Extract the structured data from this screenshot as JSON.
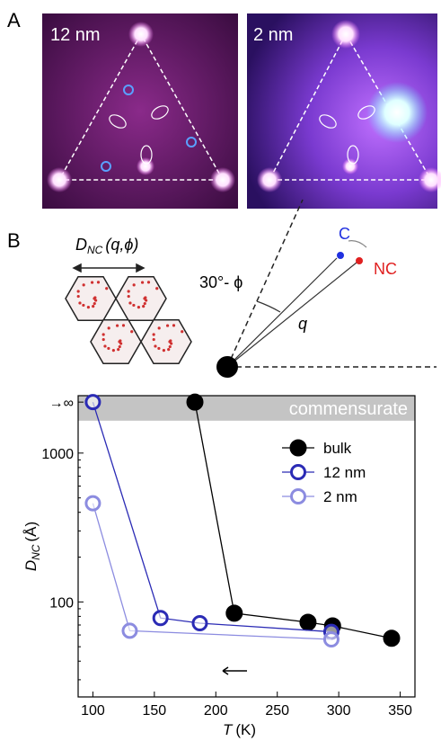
{
  "panels": {
    "a": {
      "label": "A",
      "images": [
        {
          "label": "12 nm"
        },
        {
          "label": "2 nm"
        }
      ]
    },
    "b": {
      "label": "B",
      "lattice_label": {
        "symbol": "D",
        "subscript": "NC",
        "args": "(q,ϕ)"
      },
      "angle_label": "30°- ϕ",
      "vector_label": "q",
      "c_label": "C",
      "nc_label": "NC"
    }
  },
  "chart_data": {
    "type": "line",
    "log_y": true,
    "xlabel": {
      "symbol": "T",
      "unit": "(K)"
    },
    "ylabel": {
      "symbol": "D",
      "subscript": "NC",
      "unit": "(Å)"
    },
    "xlim": [
      88,
      362
    ],
    "xticks": [
      100,
      150,
      200,
      250,
      300,
      350
    ],
    "ylim": [
      23,
      2430
    ],
    "yticks": [
      100,
      1000,
      {
        "value": 2200,
        "label": "→∞"
      }
    ],
    "band": {
      "text": "commensurate",
      "range": [
        1650,
        2430
      ],
      "color": "#c4c4c4"
    },
    "legend": "upper right",
    "series": [
      {
        "name": "bulk",
        "color": "#000000",
        "filled": true,
        "x": [
          183,
          215,
          275,
          295,
          343
        ],
        "values": [
          2200,
          84,
          73,
          69,
          57
        ]
      },
      {
        "name": "12 nm",
        "color": "#2b2bb5",
        "filled": false,
        "x": [
          100,
          155,
          187,
          294
        ],
        "values": [
          2200,
          78,
          72,
          63
        ]
      },
      {
        "name": "2 nm",
        "color": "#8c8ce0",
        "filled": false,
        "x": [
          100,
          130,
          294
        ],
        "values": [
          460,
          64,
          56
        ]
      }
    ]
  }
}
